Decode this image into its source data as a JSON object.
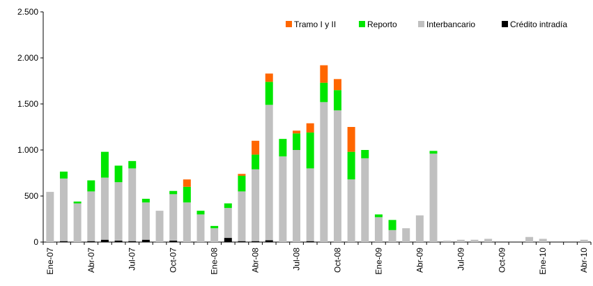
{
  "chart_data": {
    "type": "stacked_bar",
    "categories": [
      "Ene-07",
      null,
      null,
      "Abr-07",
      null,
      null,
      "Jul-07",
      null,
      null,
      "Oct-07",
      null,
      null,
      "Ene-08",
      null,
      null,
      "Abr-08",
      null,
      null,
      "Jul-08",
      null,
      null,
      "Oct-08",
      null,
      null,
      "Ene-09",
      null,
      null,
      "Abr-09",
      null,
      null,
      "Jul-09",
      null,
      null,
      "Oct-09",
      null,
      null,
      "Ene-10",
      null,
      null,
      "Abr-10"
    ],
    "series": [
      {
        "name": "Tramo I y II",
        "color": "#ff6600",
        "values": [
          0,
          0,
          0,
          0,
          0,
          0,
          0,
          0,
          0,
          0,
          80,
          0,
          0,
          0,
          20,
          150,
          90,
          0,
          30,
          100,
          190,
          120,
          270,
          0,
          0,
          0,
          0,
          0,
          0,
          0,
          0,
          0,
          0,
          0,
          0,
          0,
          0,
          0,
          0,
          0
        ]
      },
      {
        "name": "Reporto",
        "color": "#00e600",
        "values": [
          0,
          75,
          20,
          120,
          280,
          180,
          80,
          40,
          0,
          35,
          170,
          40,
          25,
          50,
          170,
          160,
          250,
          190,
          180,
          390,
          210,
          220,
          300,
          90,
          30,
          110,
          0,
          0,
          30,
          0,
          0,
          0,
          0,
          0,
          0,
          0,
          0,
          0,
          0,
          0
        ]
      },
      {
        "name": "Interbancario",
        "color": "#c0c0c0",
        "values": [
          545,
          680,
          420,
          540,
          675,
          635,
          790,
          405,
          340,
          505,
          430,
          300,
          150,
          325,
          540,
          780,
          1470,
          930,
          1000,
          790,
          1520,
          1430,
          680,
          910,
          270,
          130,
          150,
          290,
          960,
          15,
          25,
          25,
          35,
          0,
          0,
          55,
          35,
          0,
          0,
          25
        ]
      },
      {
        "name": "Crédito intradía",
        "color": "#000000",
        "values": [
          0,
          10,
          0,
          10,
          25,
          15,
          10,
          25,
          0,
          15,
          0,
          0,
          0,
          45,
          10,
          10,
          20,
          0,
          0,
          10,
          0,
          0,
          0,
          0,
          0,
          0,
          0,
          0,
          0,
          0,
          0,
          0,
          0,
          0,
          0,
          0,
          0,
          0,
          0,
          0
        ]
      }
    ],
    "ylim": [
      0,
      2500
    ],
    "yticks": [
      0,
      500,
      {
        "value": 1000,
        "label": "1.000"
      },
      {
        "value": 1500,
        "label": "1.500"
      },
      {
        "value": 2000,
        "label": "2.000"
      },
      {
        "value": 2500,
        "label": "2.500"
      }
    ],
    "grid": false,
    "legend": "top-right"
  }
}
